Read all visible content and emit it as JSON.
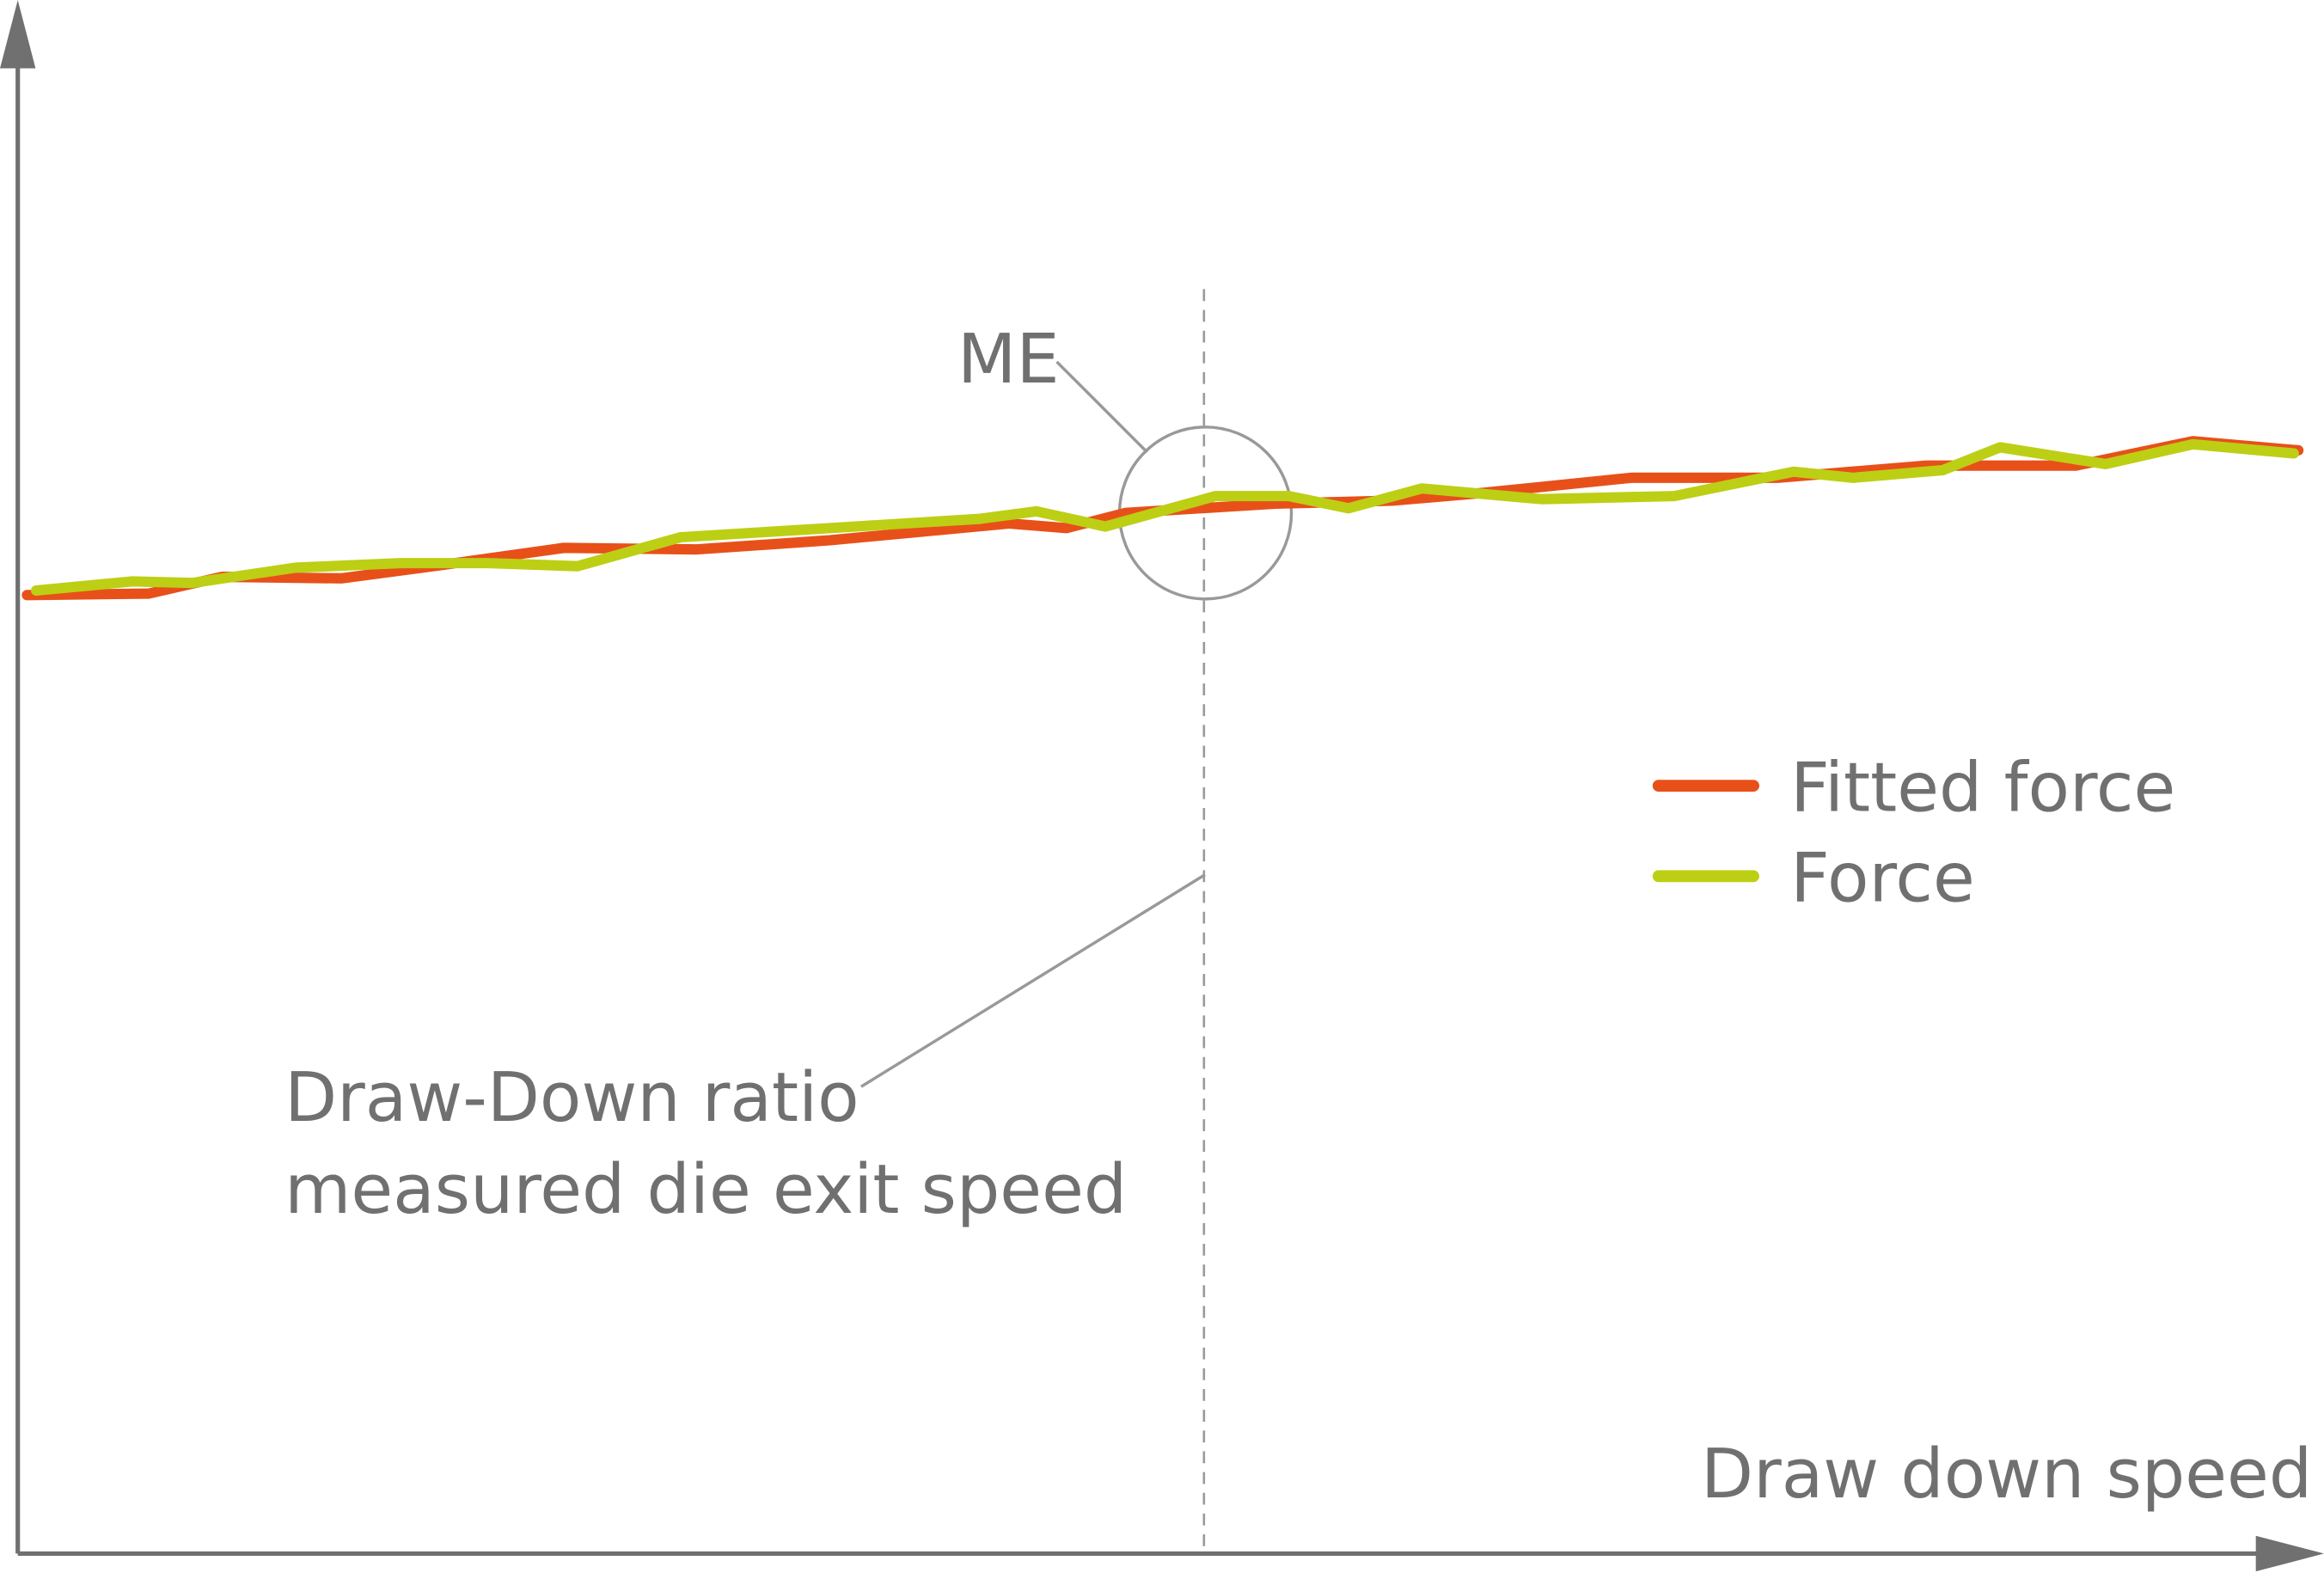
{
  "chart_data": {
    "type": "line",
    "x_label": "Draw down speed",
    "annotations": [
      "ME",
      "Draw-Down ratio",
      "measured die exit speed"
    ],
    "marker_x": 51.7,
    "xlim": [
      0,
      100
    ],
    "ylim": [
      0,
      100
    ],
    "axis_color": "#707070",
    "series": [
      {
        "name": "Fitted force",
        "color": "#e8501a",
        "x": [
          0.4,
          5.7,
          8.9,
          14.1,
          18.6,
          23.8,
          29.6,
          35.4,
          43.2,
          45.7,
          48.3,
          54.8,
          59.9,
          63.8,
          70.3,
          76.7,
          83.2,
          89.7,
          94.8,
          99.4
        ],
        "values": [
          62.9,
          63.0,
          64.1,
          64.0,
          64.9,
          66.0,
          65.9,
          66.5,
          67.6,
          67.3,
          68.3,
          68.9,
          69.1,
          69.6,
          70.6,
          70.6,
          71.4,
          71.4,
          73.0,
          72.4
        ]
      },
      {
        "name": "Force",
        "color": "#bccf14",
        "x": [
          0.8,
          5.0,
          7.6,
          12.1,
          16.7,
          20.5,
          24.4,
          28.9,
          35.4,
          41.9,
          44.4,
          47.4,
          52.2,
          55.4,
          58.0,
          61.2,
          66.4,
          72.2,
          77.4,
          80.0,
          83.9,
          86.4,
          91.0,
          94.8,
          99.2
        ],
        "values": [
          63.2,
          63.8,
          63.7,
          64.7,
          65.0,
          65.0,
          64.8,
          66.7,
          67.3,
          67.9,
          68.4,
          67.4,
          69.4,
          69.4,
          68.6,
          69.9,
          69.2,
          69.4,
          71.0,
          70.6,
          71.1,
          72.6,
          71.5,
          72.8,
          72.2
        ]
      }
    ]
  }
}
